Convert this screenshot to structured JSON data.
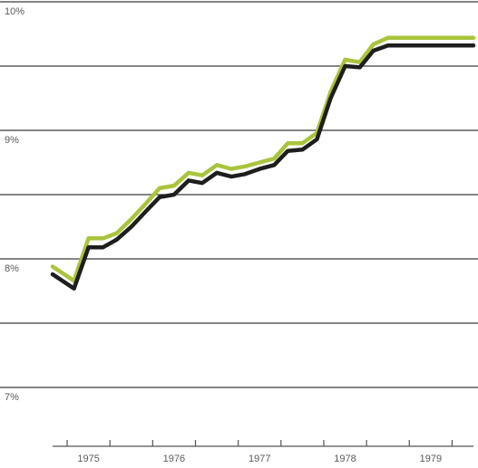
{
  "chart_data": {
    "type": "line",
    "title": "",
    "xlabel": "",
    "ylabel": "",
    "ylim": [
      6.9,
      10.0
    ],
    "yticks": [
      {
        "value": 7,
        "label": "7%"
      },
      {
        "value": 8,
        "label": "8%"
      },
      {
        "value": 9,
        "label": "9%"
      },
      {
        "value": 10,
        "label": "10%"
      }
    ],
    "gridlines": [
      7.0,
      7.5,
      8.0,
      8.5,
      9.0,
      9.5,
      10.0
    ],
    "xlim": [
      1974.75,
      1979.85
    ],
    "xticks": [
      1974.75,
      1975.25,
      1975.75,
      1976.25,
      1976.75,
      1977.25,
      1977.75,
      1978.25,
      1978.75,
      1979.25,
      1979.75
    ],
    "xtick_labels": [
      {
        "value": 1975,
        "label": "1975"
      },
      {
        "value": 1976,
        "label": "1976"
      },
      {
        "value": 1977,
        "label": "1977"
      },
      {
        "value": 1978,
        "label": "1978"
      },
      {
        "value": 1979,
        "label": "1979"
      }
    ],
    "x": [
      1974.58,
      1974.83,
      1975.0,
      1975.17,
      1975.33,
      1975.5,
      1975.67,
      1975.83,
      1976.0,
      1976.17,
      1976.33,
      1976.5,
      1976.67,
      1976.83,
      1977.0,
      1977.17,
      1977.33,
      1977.5,
      1977.67,
      1977.83,
      1978.0,
      1978.17,
      1978.33,
      1978.5,
      1978.67,
      1978.83,
      1979.0,
      1979.17,
      1979.33,
      1979.5
    ],
    "series": [
      {
        "color": "#a9c43c",
        "values": [
          7.94,
          7.83,
          8.16,
          8.16,
          8.2,
          8.31,
          8.43,
          8.55,
          8.57,
          8.67,
          8.65,
          8.73,
          8.7,
          8.72,
          8.75,
          8.78,
          8.9,
          8.9,
          8.98,
          9.3,
          9.55,
          9.53,
          9.67,
          9.72,
          9.72,
          9.72,
          9.72,
          9.72,
          9.72,
          9.72
        ]
      },
      {
        "color": "#1e1e1e",
        "values": [
          7.88,
          7.77,
          8.09,
          8.09,
          8.15,
          8.25,
          8.37,
          8.48,
          8.5,
          8.61,
          8.59,
          8.67,
          8.64,
          8.66,
          8.7,
          8.73,
          8.84,
          8.85,
          8.93,
          9.25,
          9.5,
          9.49,
          9.62,
          9.66,
          9.66,
          9.66,
          9.66,
          9.66,
          9.66,
          9.66
        ]
      }
    ]
  }
}
